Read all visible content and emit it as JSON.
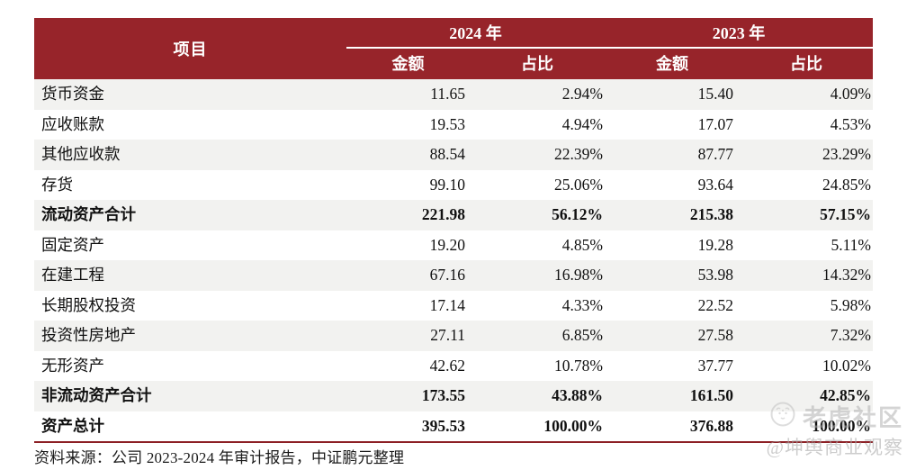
{
  "table": {
    "item_header": "项目",
    "year_groups": [
      {
        "label": "2024 年",
        "sub": [
          "金额",
          "占比"
        ]
      },
      {
        "label": "2023 年",
        "sub": [
          "金额",
          "占比"
        ]
      }
    ],
    "rows": [
      {
        "item": "货币资金",
        "values": [
          "11.65",
          "2.94%",
          "15.40",
          "4.09%"
        ],
        "bold": false
      },
      {
        "item": "应收账款",
        "values": [
          "19.53",
          "4.94%",
          "17.07",
          "4.53%"
        ],
        "bold": false
      },
      {
        "item": "其他应收款",
        "values": [
          "88.54",
          "22.39%",
          "87.77",
          "23.29%"
        ],
        "bold": false
      },
      {
        "item": "存货",
        "values": [
          "99.10",
          "25.06%",
          "93.64",
          "24.85%"
        ],
        "bold": false
      },
      {
        "item": "流动资产合计",
        "values": [
          "221.98",
          "56.12%",
          "215.38",
          "57.15%"
        ],
        "bold": true
      },
      {
        "item": "固定资产",
        "values": [
          "19.20",
          "4.85%",
          "19.28",
          "5.11%"
        ],
        "bold": false
      },
      {
        "item": "在建工程",
        "values": [
          "67.16",
          "16.98%",
          "53.98",
          "14.32%"
        ],
        "bold": false
      },
      {
        "item": "长期股权投资",
        "values": [
          "17.14",
          "4.33%",
          "22.52",
          "5.98%"
        ],
        "bold": false
      },
      {
        "item": "投资性房地产",
        "values": [
          "27.11",
          "6.85%",
          "27.58",
          "7.32%"
        ],
        "bold": false
      },
      {
        "item": "无形资产",
        "values": [
          "42.62",
          "10.78%",
          "37.77",
          "10.02%"
        ],
        "bold": false
      },
      {
        "item": "非流动资产合计",
        "values": [
          "173.55",
          "43.88%",
          "161.50",
          "42.85%"
        ],
        "bold": true
      },
      {
        "item": "资产总计",
        "values": [
          "395.53",
          "100.00%",
          "376.88",
          "100.00%"
        ],
        "bold": true
      }
    ]
  },
  "chart_data": {
    "type": "table",
    "columns": [
      "项目",
      "2024年 金额",
      "2024年 占比",
      "2023年 金额",
      "2023年 占比"
    ],
    "rows": [
      [
        "货币资金",
        "11.65",
        "2.94%",
        "15.40",
        "4.09%"
      ],
      [
        "应收账款",
        "19.53",
        "4.94%",
        "17.07",
        "4.53%"
      ],
      [
        "其他应收款",
        "88.54",
        "22.39%",
        "87.77",
        "23.29%"
      ],
      [
        "存货",
        "99.10",
        "25.06%",
        "93.64",
        "24.85%"
      ],
      [
        "流动资产合计",
        "221.98",
        "56.12%",
        "215.38",
        "57.15%"
      ],
      [
        "固定资产",
        "19.20",
        "4.85%",
        "19.28",
        "5.11%"
      ],
      [
        "在建工程",
        "67.16",
        "16.98%",
        "53.98",
        "14.32%"
      ],
      [
        "长期股权投资",
        "17.14",
        "4.33%",
        "22.52",
        "5.98%"
      ],
      [
        "投资性房地产",
        "27.11",
        "6.85%",
        "27.58",
        "7.32%"
      ],
      [
        "无形资产",
        "42.62",
        "10.78%",
        "37.77",
        "10.02%"
      ],
      [
        "非流动资产合计",
        "173.55",
        "43.88%",
        "161.50",
        "42.85%"
      ],
      [
        "资产总计",
        "395.53",
        "100.00%",
        "376.88",
        "100.00%"
      ]
    ]
  },
  "footer": {
    "source": "资料来源：公司 2023-2024 年审计报告，中证鹏元整理"
  },
  "watermark": {
    "brand": "老虎社区",
    "handle": "@坤舆商业观察",
    "icon": "tiger-icon"
  },
  "colors": {
    "header_bg": "#97242a",
    "stripe_bg": "#f2f2f0",
    "bottom_border": "#8c1f24",
    "header_text": "#ffffff",
    "body_text": "#111111",
    "watermark_text": "#b0b0b0"
  }
}
